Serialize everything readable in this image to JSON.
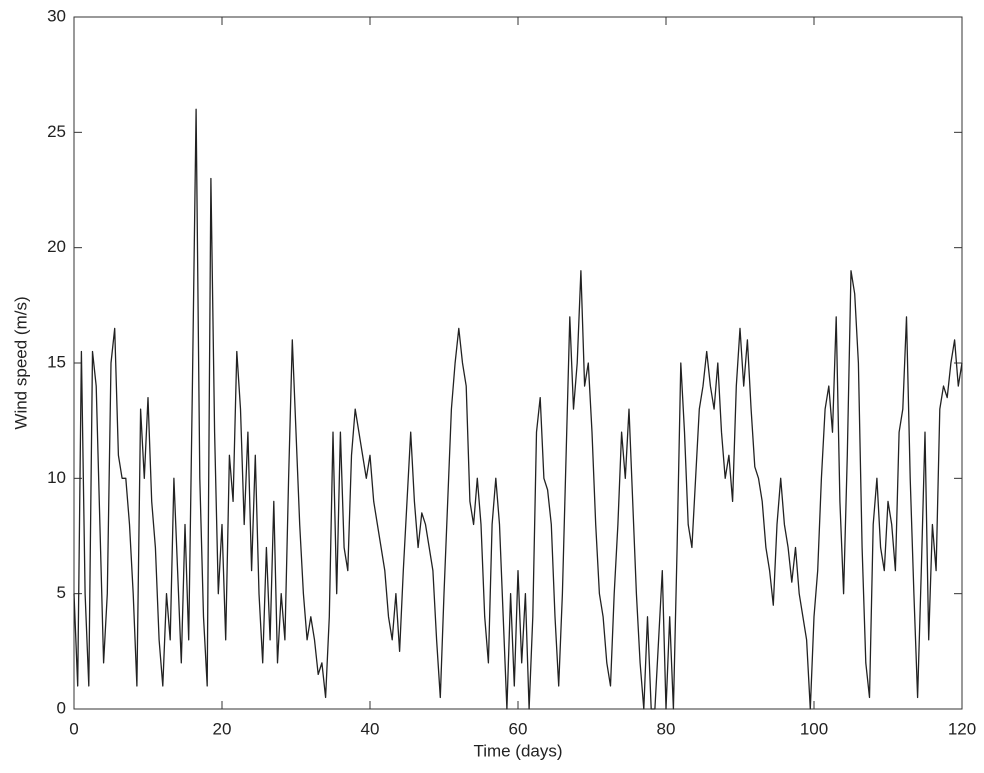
{
  "chart_data": {
    "type": "line",
    "x_label": "Time (days)",
    "y_label": "Wind speed (m/s)",
    "x": [
      0,
      0.5,
      1,
      1.5,
      2,
      2.5,
      3,
      3.5,
      4,
      4.5,
      5,
      5.5,
      6,
      6.5,
      7,
      7.5,
      8,
      8.5,
      9,
      9.5,
      10,
      10.5,
      11,
      11.5,
      12,
      12.5,
      13,
      13.5,
      14,
      14.5,
      15,
      15.5,
      16,
      16.5,
      17,
      17.5,
      18,
      18.5,
      19,
      19.5,
      20,
      20.5,
      21,
      21.5,
      22,
      22.5,
      23,
      23.5,
      24,
      24.5,
      25,
      25.5,
      26,
      26.5,
      27,
      27.5,
      28,
      28.5,
      29,
      29.5,
      30,
      30.5,
      31,
      31.5,
      32,
      32.5,
      33,
      33.5,
      34,
      34.5,
      35,
      35.5,
      36,
      36.5,
      37,
      37.5,
      38,
      38.5,
      39,
      39.5,
      40,
      40.5,
      41,
      41.5,
      42,
      42.5,
      43,
      43.5,
      44,
      44.5,
      45,
      45.5,
      46,
      46.5,
      47,
      47.5,
      48,
      48.5,
      49,
      49.5,
      50,
      50.5,
      51,
      51.5,
      52,
      52.5,
      53,
      53.5,
      54,
      54.5,
      55,
      55.5,
      56,
      56.5,
      57,
      57.5,
      58,
      58.5,
      59,
      59.5,
      60,
      60.5,
      61,
      61.5,
      62,
      62.5,
      63,
      63.5,
      64,
      64.5,
      65,
      65.5,
      66,
      66.5,
      67,
      67.5,
      68,
      68.5,
      69,
      69.5,
      70,
      70.5,
      71,
      71.5,
      72,
      72.5,
      73,
      73.5,
      74,
      74.5,
      75,
      75.5,
      76,
      76.5,
      77,
      77.5,
      78,
      78.5,
      79,
      79.5,
      80,
      80.5,
      81,
      81.5,
      82,
      82.5,
      83,
      83.5,
      84,
      84.5,
      85,
      85.5,
      86,
      86.5,
      87,
      87.5,
      88,
      88.5,
      89,
      89.5,
      90,
      90.5,
      91,
      91.5,
      92,
      92.5,
      93,
      93.5,
      94,
      94.5,
      95,
      95.5,
      96,
      96.5,
      97,
      97.5,
      98,
      98.5,
      99,
      99.5,
      100,
      100.5,
      101,
      101.5,
      102,
      102.5,
      103,
      103.5,
      104,
      104.5,
      105,
      105.5,
      106,
      106.5,
      107,
      107.5,
      108,
      108.5,
      109,
      109.5,
      110,
      110.5,
      111,
      111.5,
      112,
      112.5,
      113,
      113.5,
      114,
      114.5,
      115,
      115.5,
      116,
      116.5,
      117,
      117.5,
      118,
      118.5,
      119,
      119.5,
      120
    ],
    "series": [
      {
        "color": "#222222",
        "values": [
          5,
          1,
          15.5,
          5,
          1,
          15.5,
          14,
          8,
          2,
          5,
          15,
          16.5,
          11,
          10,
          10,
          8,
          5,
          1,
          13,
          10,
          13.5,
          9,
          7,
          3,
          1,
          5,
          3,
          10,
          6,
          2,
          8,
          3,
          14,
          26,
          10,
          4,
          1,
          23,
          12,
          5,
          8,
          3,
          11,
          9,
          15.5,
          13,
          8,
          12,
          6,
          11,
          5,
          2,
          7,
          3,
          9,
          2,
          5,
          3,
          10,
          16,
          12,
          8,
          5,
          3,
          4,
          3,
          1.5,
          2,
          0.5,
          4,
          12,
          5,
          12,
          7,
          6,
          11,
          13,
          12,
          11,
          10,
          11,
          9,
          8,
          7,
          6,
          4,
          3,
          5,
          2.5,
          6,
          9,
          12,
          9,
          7,
          8.5,
          8,
          7,
          6,
          3,
          0.5,
          5,
          9,
          13,
          15,
          16.5,
          15,
          14,
          9,
          8,
          10,
          8,
          4,
          2,
          8,
          10,
          8,
          4,
          0,
          5,
          1,
          6,
          2,
          5,
          0,
          4,
          12,
          13.5,
          10,
          9.5,
          8,
          4,
          1,
          5,
          11,
          17,
          13,
          15,
          19,
          14,
          15,
          12,
          8,
          5,
          4,
          2,
          1,
          5,
          8,
          12,
          10,
          13,
          9,
          5,
          2,
          0,
          4,
          0,
          0,
          3,
          6,
          0,
          4,
          0,
          7,
          15,
          12,
          8,
          7,
          10,
          13,
          14,
          15.5,
          14,
          13,
          15,
          12,
          10,
          11,
          9,
          14,
          16.5,
          14,
          16,
          13,
          10.5,
          10,
          9,
          7,
          6,
          4.5,
          8,
          10,
          8,
          7,
          5.5,
          7,
          5,
          4,
          3,
          0,
          4,
          6,
          10,
          13,
          14,
          12,
          17,
          9,
          5,
          11,
          19,
          18,
          15,
          7,
          2,
          0.5,
          8,
          10,
          7,
          6,
          9,
          8,
          6,
          12,
          13,
          17,
          10,
          5,
          0.5,
          6,
          12,
          3,
          8,
          6,
          13,
          14,
          13.5,
          15,
          16,
          14,
          15
        ]
      }
    ],
    "xlim": [
      0,
      120
    ],
    "xticks": [
      0,
      20,
      40,
      60,
      80,
      100,
      120
    ],
    "ylim": [
      0,
      30
    ],
    "yticks": [
      0,
      5,
      10,
      15,
      20,
      25,
      30
    ],
    "grid": false
  }
}
